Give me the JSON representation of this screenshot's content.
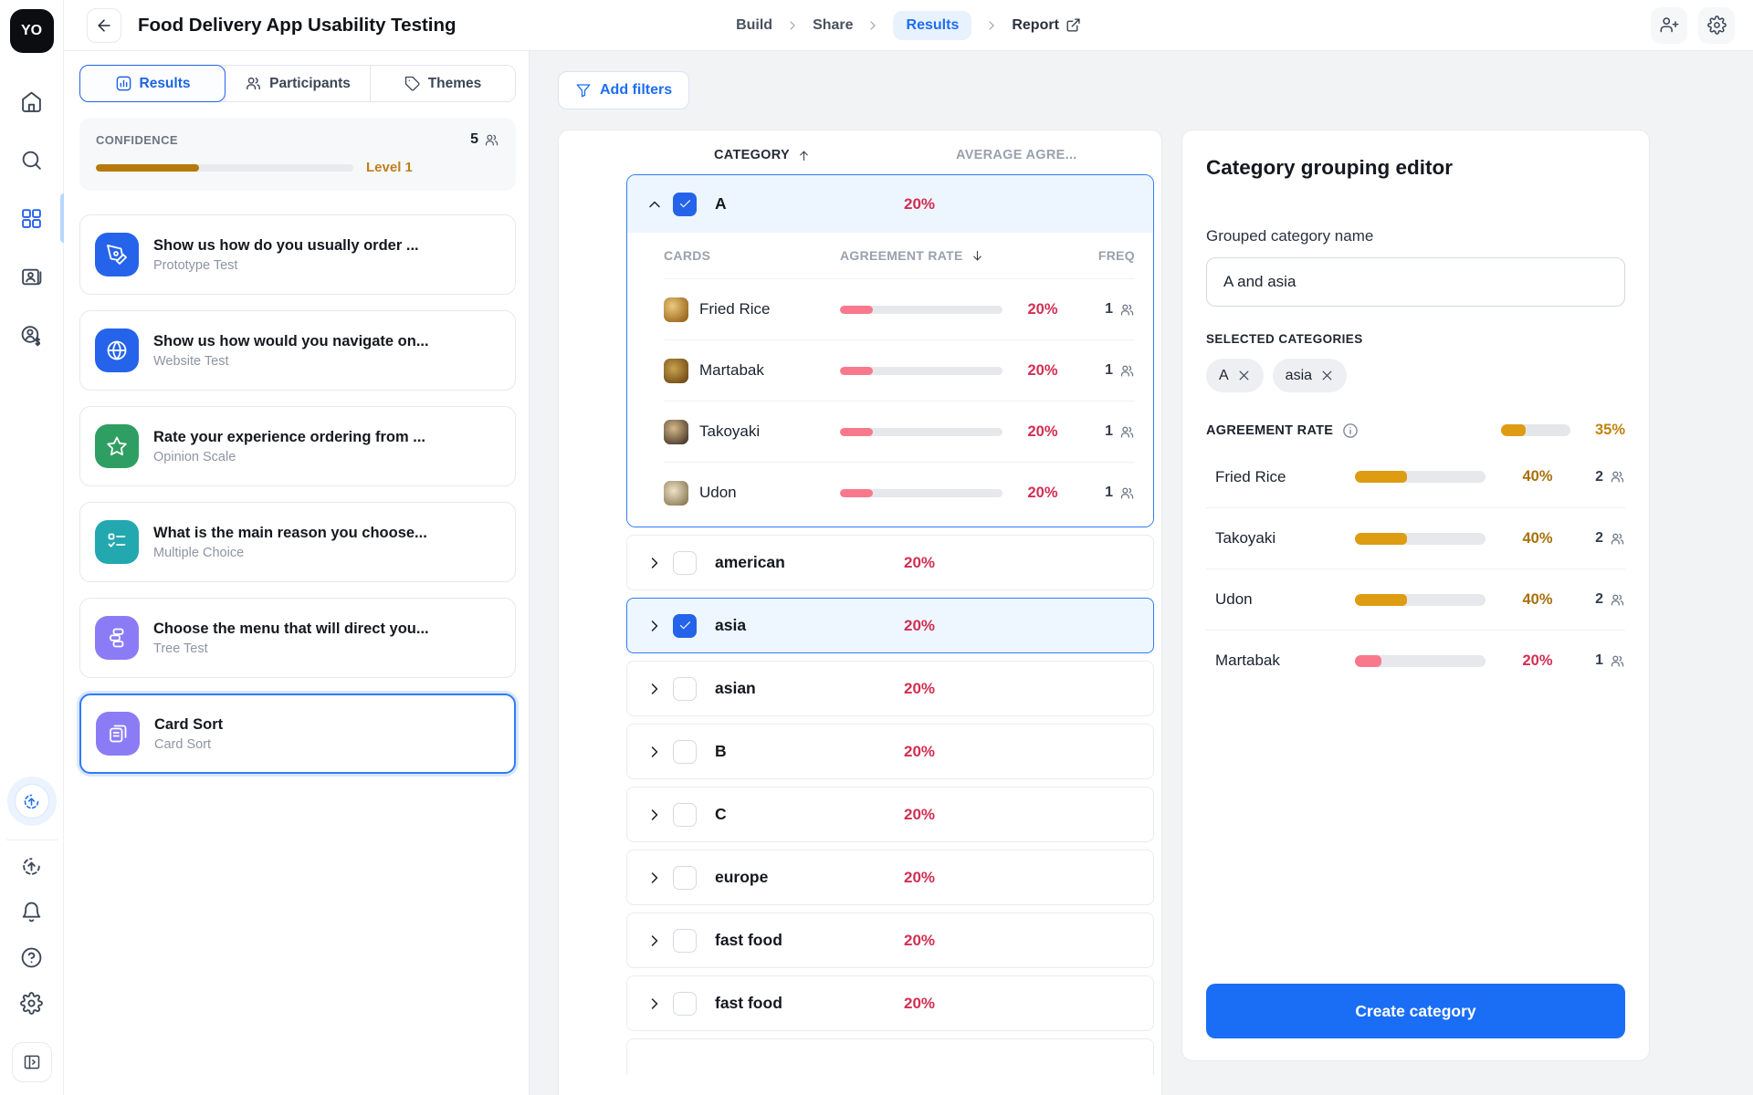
{
  "topbar": {
    "title": "Food Delivery App Usability Testing",
    "breadcrumb": {
      "build": "Build",
      "share": "Share",
      "results": "Results",
      "report": "Report"
    }
  },
  "rail": {
    "logo_text": "YO"
  },
  "panel": {
    "tabs": [
      {
        "label": "Results"
      },
      {
        "label": "Participants"
      },
      {
        "label": "Themes"
      }
    ],
    "confidence": {
      "label": "CONFIDENCE",
      "count": "5",
      "level": "Level 1",
      "pct": 40
    },
    "tests": [
      {
        "title": "Show us how do you usually order ...",
        "type": "Prototype Test"
      },
      {
        "title": "Show us how would you navigate on...",
        "type": "Website Test"
      },
      {
        "title": "Rate your experience ordering from ...",
        "type": "Opinion Scale"
      },
      {
        "title": "What is the main reason you choose...",
        "type": "Multiple Choice"
      },
      {
        "title": "Choose the menu that will direct you...",
        "type": "Tree Test"
      },
      {
        "title": "Card Sort",
        "type": "Card Sort"
      }
    ]
  },
  "main": {
    "add_filters": "Add filters",
    "table": {
      "category_header": "CATEGORY",
      "avg_header": "AVERAGE AGRE...",
      "expanded": {
        "name": "A",
        "avg": "20%",
        "cards_header": "CARDS",
        "rate_header": "AGREEMENT RATE",
        "freq_header": "FREQ",
        "cards": [
          {
            "name": "Fried Rice",
            "rate": "20%",
            "pct": 20,
            "freq": "1"
          },
          {
            "name": "Martabak",
            "rate": "20%",
            "pct": 20,
            "freq": "1"
          },
          {
            "name": "Takoyaki",
            "rate": "20%",
            "pct": 20,
            "freq": "1"
          },
          {
            "name": "Udon",
            "rate": "20%",
            "pct": 20,
            "freq": "1"
          }
        ]
      },
      "groups": [
        {
          "name": "american",
          "avg": "20%"
        },
        {
          "name": "asia",
          "avg": "20%"
        },
        {
          "name": "asian",
          "avg": "20%"
        },
        {
          "name": "B",
          "avg": "20%"
        },
        {
          "name": "C",
          "avg": "20%"
        },
        {
          "name": "europe",
          "avg": "20%"
        },
        {
          "name": "fast food",
          "avg": "20%"
        },
        {
          "name": "fast food",
          "avg": "20%"
        }
      ]
    }
  },
  "editor": {
    "title": "Category grouping editor",
    "name_label": "Grouped category name",
    "name_value": "A and asia",
    "selected_label": "SELECTED CATEGORIES",
    "chips": [
      {
        "label": "A"
      },
      {
        "label": "asia"
      }
    ],
    "rate_label": "AGREEMENT RATE",
    "overall": {
      "rate": "35%",
      "pct": 35
    },
    "items": [
      {
        "name": "Fried Rice",
        "rate": "40%",
        "pct": 40,
        "freq": "2"
      },
      {
        "name": "Takoyaki",
        "rate": "40%",
        "pct": 40,
        "freq": "2"
      },
      {
        "name": "Udon",
        "rate": "40%",
        "pct": 40,
        "freq": "2"
      },
      {
        "name": "Martabak",
        "rate": "20%",
        "pct": 20,
        "freq": "1"
      }
    ],
    "submit": "Create category"
  },
  "colors": {
    "accent": "#2563eb",
    "button_blue": "#1a6ef5",
    "red_pct": "#d22e52",
    "pink_bar": "#f8798b",
    "amber_bar": "#dd9c12",
    "amber_text": "#a8700a",
    "confidence_bar": "#b5790e",
    "selected_bg": "#eef7ff"
  }
}
